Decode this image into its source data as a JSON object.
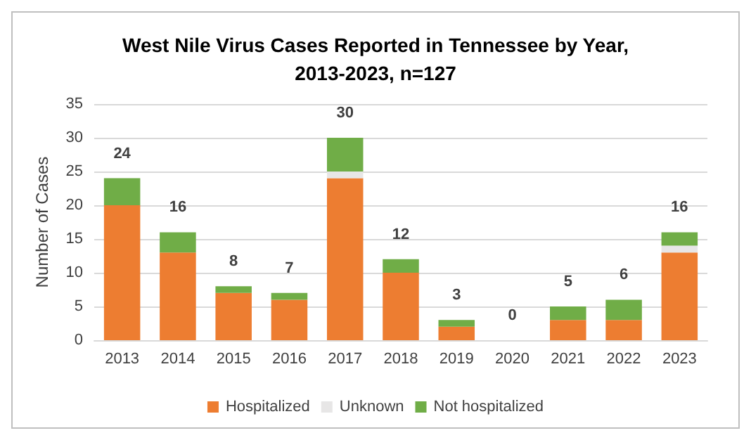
{
  "chart_data": {
    "type": "bar",
    "title": "West Nile Virus Cases Reported in Tennessee by Year,\n2013-2023, n=127",
    "ylabel": "Number of Cases",
    "categories": [
      "2013",
      "2014",
      "2015",
      "2016",
      "2017",
      "2018",
      "2019",
      "2020",
      "2021",
      "2022",
      "2023"
    ],
    "series": [
      {
        "name": "Hospitalized",
        "color": "#ed7d31",
        "values": [
          20,
          13,
          7,
          6,
          24,
          10,
          2,
          0,
          3,
          3,
          13
        ]
      },
      {
        "name": "Unknown",
        "color": "#e7e6e6",
        "values": [
          0,
          0,
          0,
          0,
          1,
          0,
          0,
          0,
          0,
          0,
          1
        ]
      },
      {
        "name": "Not hospitalized",
        "color": "#70ad47",
        "values": [
          4,
          3,
          1,
          1,
          5,
          2,
          1,
          0,
          2,
          3,
          2
        ]
      }
    ],
    "stacked": true,
    "totals": [
      "24",
      "16",
      "8",
      "7",
      "30",
      "12",
      "3",
      "0",
      "5",
      "6",
      "16"
    ],
    "ylim": [
      0,
      35
    ],
    "yticks": [
      0,
      5,
      10,
      15,
      20,
      25,
      30,
      35
    ],
    "grid": "y",
    "legend": "bottom"
  }
}
